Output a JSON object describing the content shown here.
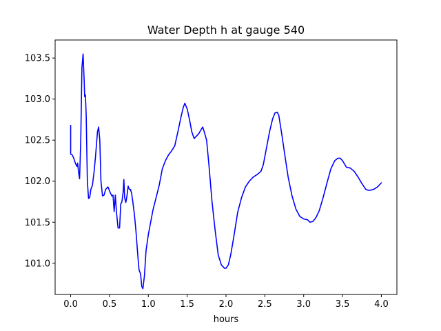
{
  "chart_data": {
    "type": "line",
    "title": "Water Depth h at gauge 540",
    "xlabel": "hours",
    "ylabel": "",
    "xlim": [
      -0.2,
      4.2
    ],
    "ylim": [
      100.62,
      103.72
    ],
    "xticks": [
      0.0,
      0.5,
      1.0,
      1.5,
      2.0,
      2.5,
      3.0,
      3.5,
      4.0
    ],
    "xtick_labels": [
      "0.0",
      "0.5",
      "1.0",
      "1.5",
      "2.0",
      "2.5",
      "3.0",
      "3.5",
      "4.0"
    ],
    "yticks": [
      101.0,
      101.5,
      102.0,
      102.5,
      103.0,
      103.5
    ],
    "ytick_labels": [
      "101.0",
      "101.5",
      "102.0",
      "102.5",
      "103.0",
      "103.5"
    ],
    "grid": false,
    "series": [
      {
        "name": "",
        "color": "#0000ff",
        "points": [
          [
            0.0,
            102.68
          ],
          [
            0.0,
            102.33
          ],
          [
            0.02,
            102.32
          ],
          [
            0.04,
            102.28
          ],
          [
            0.06,
            102.22
          ],
          [
            0.08,
            102.18
          ],
          [
            0.09,
            102.22
          ],
          [
            0.1,
            102.12
          ],
          [
            0.115,
            102.03
          ],
          [
            0.13,
            102.5
          ],
          [
            0.145,
            103.38
          ],
          [
            0.16,
            103.55
          ],
          [
            0.175,
            103.2
          ],
          [
            0.18,
            103.03
          ],
          [
            0.19,
            103.05
          ],
          [
            0.2,
            102.8
          ],
          [
            0.215,
            102.0
          ],
          [
            0.23,
            101.79
          ],
          [
            0.245,
            101.8
          ],
          [
            0.26,
            101.9
          ],
          [
            0.28,
            101.95
          ],
          [
            0.3,
            102.1
          ],
          [
            0.32,
            102.3
          ],
          [
            0.345,
            102.6
          ],
          [
            0.36,
            102.66
          ],
          [
            0.375,
            102.5
          ],
          [
            0.39,
            102.0
          ],
          [
            0.41,
            101.82
          ],
          [
            0.43,
            101.83
          ],
          [
            0.45,
            101.9
          ],
          [
            0.48,
            101.93
          ],
          [
            0.51,
            101.86
          ],
          [
            0.53,
            101.82
          ],
          [
            0.545,
            101.83
          ],
          [
            0.56,
            101.63
          ],
          [
            0.575,
            101.83
          ],
          [
            0.59,
            101.62
          ],
          [
            0.61,
            101.43
          ],
          [
            0.63,
            101.43
          ],
          [
            0.645,
            101.72
          ],
          [
            0.66,
            101.75
          ],
          [
            0.675,
            101.86
          ],
          [
            0.685,
            102.02
          ],
          [
            0.695,
            101.8
          ],
          [
            0.71,
            101.74
          ],
          [
            0.725,
            101.82
          ],
          [
            0.74,
            101.94
          ],
          [
            0.755,
            101.9
          ],
          [
            0.77,
            101.9
          ],
          [
            0.785,
            101.85
          ],
          [
            0.8,
            101.75
          ],
          [
            0.82,
            101.6
          ],
          [
            0.84,
            101.4
          ],
          [
            0.86,
            101.15
          ],
          [
            0.88,
            100.92
          ],
          [
            0.9,
            100.87
          ],
          [
            0.915,
            100.72
          ],
          [
            0.93,
            100.69
          ],
          [
            0.95,
            100.85
          ],
          [
            0.97,
            101.15
          ],
          [
            1.0,
            101.35
          ],
          [
            1.03,
            101.5
          ],
          [
            1.06,
            101.65
          ],
          [
            1.1,
            101.8
          ],
          [
            1.14,
            101.95
          ],
          [
            1.18,
            102.15
          ],
          [
            1.22,
            102.25
          ],
          [
            1.26,
            102.32
          ],
          [
            1.3,
            102.37
          ],
          [
            1.34,
            102.43
          ],
          [
            1.38,
            102.6
          ],
          [
            1.42,
            102.78
          ],
          [
            1.45,
            102.9
          ],
          [
            1.47,
            102.95
          ],
          [
            1.5,
            102.88
          ],
          [
            1.53,
            102.75
          ],
          [
            1.56,
            102.6
          ],
          [
            1.59,
            102.52
          ],
          [
            1.62,
            102.55
          ],
          [
            1.65,
            102.58
          ],
          [
            1.68,
            102.63
          ],
          [
            1.7,
            102.66
          ],
          [
            1.72,
            102.6
          ],
          [
            1.75,
            102.5
          ],
          [
            1.78,
            102.2
          ],
          [
            1.82,
            101.75
          ],
          [
            1.86,
            101.4
          ],
          [
            1.9,
            101.1
          ],
          [
            1.94,
            100.98
          ],
          [
            1.98,
            100.94
          ],
          [
            2.0,
            100.94
          ],
          [
            2.03,
            100.98
          ],
          [
            2.06,
            101.1
          ],
          [
            2.1,
            101.32
          ],
          [
            2.15,
            101.62
          ],
          [
            2.2,
            101.8
          ],
          [
            2.25,
            101.93
          ],
          [
            2.3,
            102.0
          ],
          [
            2.35,
            102.05
          ],
          [
            2.4,
            102.08
          ],
          [
            2.45,
            102.12
          ],
          [
            2.48,
            102.2
          ],
          [
            2.52,
            102.4
          ],
          [
            2.56,
            102.6
          ],
          [
            2.6,
            102.76
          ],
          [
            2.63,
            102.83
          ],
          [
            2.66,
            102.84
          ],
          [
            2.68,
            102.8
          ],
          [
            2.72,
            102.56
          ],
          [
            2.76,
            102.3
          ],
          [
            2.8,
            102.05
          ],
          [
            2.85,
            101.82
          ],
          [
            2.9,
            101.66
          ],
          [
            2.95,
            101.57
          ],
          [
            3.0,
            101.54
          ],
          [
            3.05,
            101.53
          ],
          [
            3.08,
            101.5
          ],
          [
            3.12,
            101.51
          ],
          [
            3.16,
            101.56
          ],
          [
            3.2,
            101.64
          ],
          [
            3.25,
            101.8
          ],
          [
            3.3,
            101.98
          ],
          [
            3.35,
            102.15
          ],
          [
            3.4,
            102.25
          ],
          [
            3.44,
            102.28
          ],
          [
            3.47,
            102.28
          ],
          [
            3.5,
            102.25
          ],
          [
            3.55,
            102.17
          ],
          [
            3.6,
            102.16
          ],
          [
            3.65,
            102.12
          ],
          [
            3.7,
            102.05
          ],
          [
            3.75,
            101.97
          ],
          [
            3.8,
            101.9
          ],
          [
            3.83,
            101.89
          ],
          [
            3.86,
            101.89
          ],
          [
            3.9,
            101.9
          ],
          [
            3.95,
            101.93
          ],
          [
            4.0,
            101.98
          ]
        ]
      }
    ]
  }
}
